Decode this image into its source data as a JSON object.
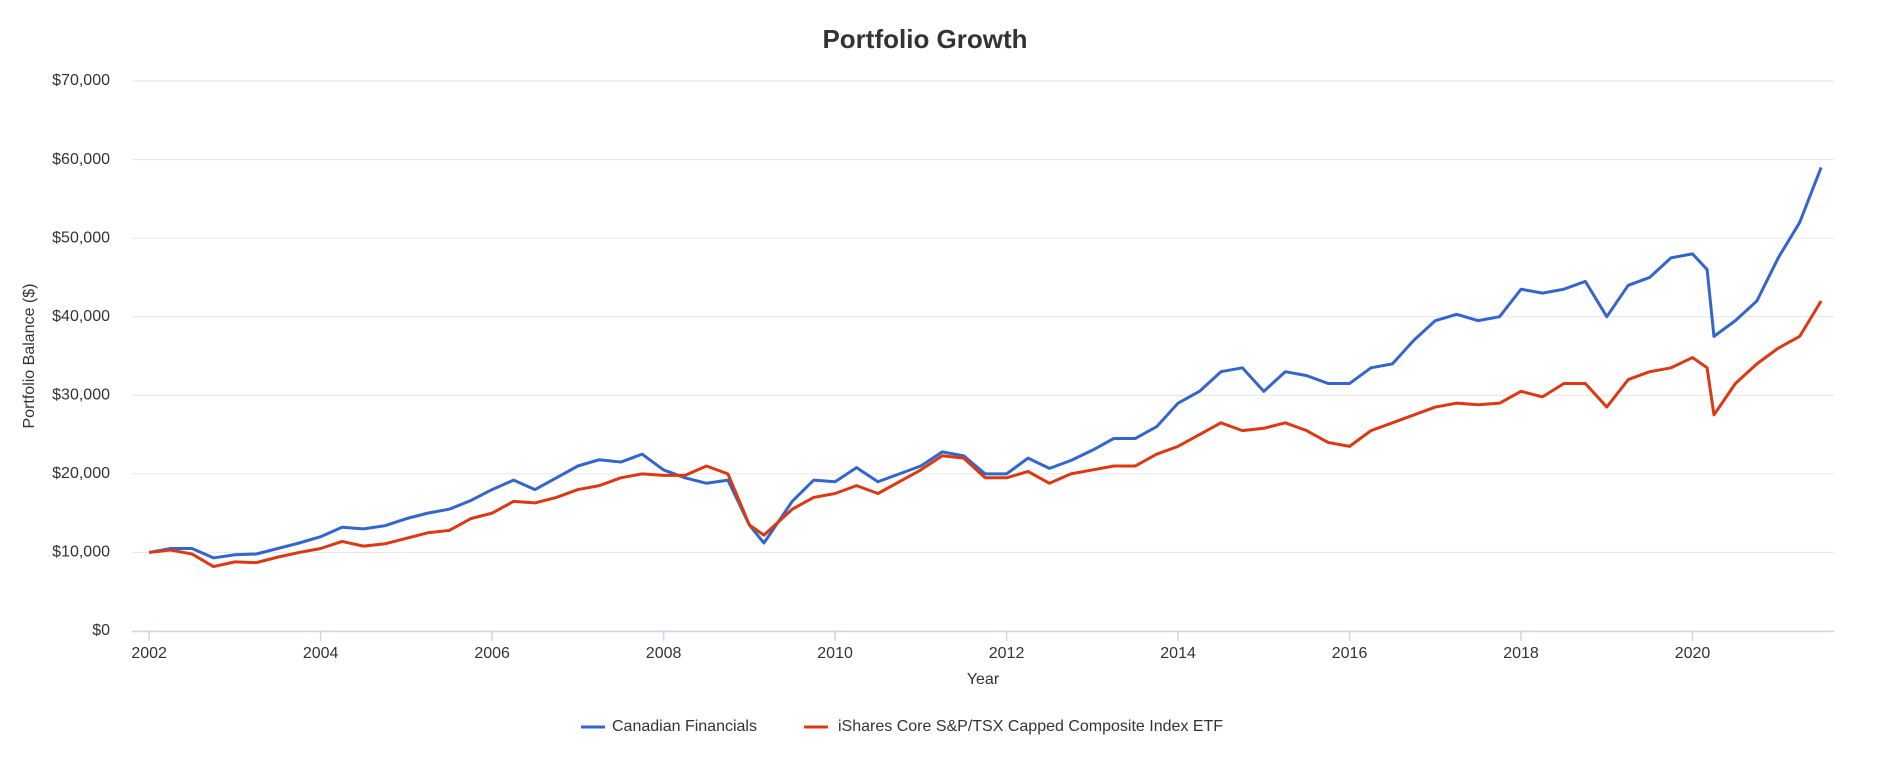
{
  "chart_data": {
    "type": "line",
    "title": "Portfolio Growth",
    "x_label": "Year",
    "y_label": "Portfolio Balance ($)",
    "x": [
      2002,
      2002.25,
      2002.5,
      2002.75,
      2003,
      2003.25,
      2003.5,
      2003.75,
      2004,
      2004.25,
      2004.5,
      2004.75,
      2005,
      2005.25,
      2005.5,
      2005.75,
      2006,
      2006.25,
      2006.5,
      2006.75,
      2007,
      2007.25,
      2007.5,
      2007.75,
      2008,
      2008.25,
      2008.5,
      2008.75,
      2009,
      2009.17,
      2009.5,
      2009.75,
      2010,
      2010.25,
      2010.5,
      2010.75,
      2011,
      2011.25,
      2011.5,
      2011.75,
      2012,
      2012.25,
      2012.5,
      2012.75,
      2013,
      2013.25,
      2013.5,
      2013.75,
      2014,
      2014.25,
      2014.5,
      2014.75,
      2015,
      2015.25,
      2015.5,
      2015.75,
      2016,
      2016.25,
      2016.5,
      2016.75,
      2017,
      2017.25,
      2017.5,
      2017.75,
      2018,
      2018.25,
      2018.5,
      2018.75,
      2019,
      2019.25,
      2019.5,
      2019.75,
      2020,
      2020.17,
      2020.25,
      2020.5,
      2020.75,
      2021,
      2021.25,
      2021.5
    ],
    "series": [
      {
        "name": "Canadian Financials",
        "color": "#3366cc",
        "values": [
          10000,
          10500,
          10500,
          9300,
          9700,
          9800,
          10500,
          11200,
          12000,
          13200,
          13000,
          13400,
          14300,
          15000,
          15500,
          16600,
          18000,
          19200,
          18000,
          19500,
          21000,
          21800,
          21500,
          22500,
          20500,
          19500,
          18800,
          19200,
          13500,
          11200,
          16500,
          19200,
          19000,
          20800,
          19000,
          20000,
          21000,
          22800,
          22300,
          20000,
          20000,
          22000,
          20700,
          21700,
          23000,
          24500,
          24500,
          26000,
          29000,
          30500,
          33000,
          33500,
          30500,
          33000,
          32500,
          31500,
          31500,
          33500,
          34000,
          37000,
          39500,
          40300,
          39500,
          40000,
          43500,
          43000,
          43500,
          44500,
          40000,
          44000,
          45000,
          47500,
          48000,
          46000,
          37500,
          39500,
          42000,
          47500,
          52000,
          59000
        ]
      },
      {
        "name": "iShares Core S&P/TSX Capped Composite Index ETF",
        "color": "#dc3912",
        "values": [
          10000,
          10300,
          9800,
          8200,
          8800,
          8700,
          9400,
          10000,
          10500,
          11400,
          10800,
          11100,
          11800,
          12500,
          12800,
          14300,
          15000,
          16500,
          16300,
          17000,
          18000,
          18500,
          19500,
          20000,
          19800,
          19800,
          21000,
          20000,
          13500,
          12200,
          15500,
          17000,
          17500,
          18500,
          17500,
          19000,
          20500,
          22300,
          22000,
          19500,
          19500,
          20300,
          18800,
          20000,
          20500,
          21000,
          21000,
          22500,
          23500,
          25000,
          26500,
          25500,
          25800,
          26500,
          25500,
          24000,
          23500,
          25500,
          26500,
          27500,
          28500,
          29000,
          28800,
          29000,
          30500,
          29800,
          31500,
          31500,
          28500,
          32000,
          33000,
          33500,
          34800,
          33500,
          27500,
          31500,
          34000,
          36000,
          37500,
          42000
        ]
      }
    ],
    "xlim": [
      2001.8,
      2021.65
    ],
    "xticks": [
      2002,
      2004,
      2006,
      2008,
      2010,
      2012,
      2014,
      2016,
      2018,
      2020
    ],
    "ylim": [
      0,
      70000
    ],
    "yticks": [
      {
        "value": 0,
        "label": "$0"
      },
      {
        "value": 10000,
        "label": "$10,000"
      },
      {
        "value": 20000,
        "label": "$20,000"
      },
      {
        "value": 30000,
        "label": "$30,000"
      },
      {
        "value": 40000,
        "label": "$40,000"
      },
      {
        "value": 50000,
        "label": "$50,000"
      },
      {
        "value": 60000,
        "label": "$60,000"
      },
      {
        "value": 70000,
        "label": "$70,000"
      }
    ],
    "grid": true,
    "legend": "bottom"
  }
}
